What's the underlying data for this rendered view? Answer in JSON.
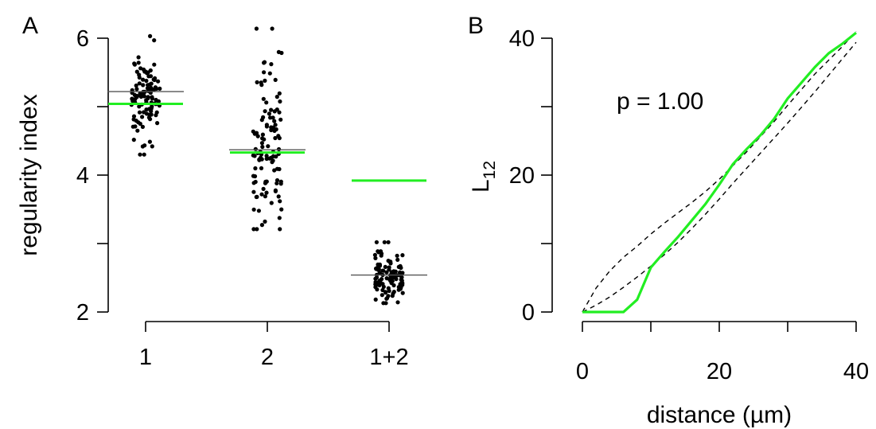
{
  "chart_data": [
    {
      "panel": "A",
      "type": "scatter",
      "ylabel": "regularity index",
      "ylim": [
        2,
        6
      ],
      "yticks_major": [
        2,
        4,
        6
      ],
      "yticks_minor": [
        3,
        5
      ],
      "categories": [
        "1",
        "2",
        "1+2"
      ],
      "groups": [
        {
          "category": "1",
          "mean_line": 5.22,
          "reference_line": 5.04,
          "distribution": {
            "n": 110,
            "center": 5.12,
            "spread": 0.34,
            "min": 4.3,
            "max": 6.03
          }
        },
        {
          "category": "2",
          "mean_line": 4.37,
          "reference_line": 4.33,
          "distribution": {
            "n": 110,
            "center": 4.45,
            "spread": 0.62,
            "min": 3.21,
            "max": 6.14
          }
        },
        {
          "category": "1+2",
          "mean_line": 2.54,
          "reference_line": 3.92,
          "distribution": {
            "n": 110,
            "center": 2.54,
            "spread": 0.17,
            "min": 2.13,
            "max": 3.02
          }
        }
      ],
      "colors": {
        "points": "#000000",
        "mean_line": "#555555",
        "reference_line": "#22ee22"
      }
    },
    {
      "panel": "B",
      "type": "line",
      "xlabel": "distance (µm)",
      "ylabel_main": "L",
      "ylabel_sub": "12",
      "xlim": [
        0,
        40
      ],
      "ylim": [
        0,
        40
      ],
      "xticks_major": [
        0,
        20,
        40
      ],
      "xticks_minor": [
        10,
        30
      ],
      "yticks_major": [
        0,
        20,
        40
      ],
      "yticks_minor": [
        10,
        30
      ],
      "annotation": "p = 1.00",
      "series": [
        {
          "role": "observed",
          "color": "#22ee22",
          "x": [
            0,
            2,
            4,
            6,
            8,
            10,
            12,
            14,
            16,
            18,
            20,
            22,
            24,
            26,
            28,
            30,
            32,
            34,
            36,
            38,
            40
          ],
          "y": [
            0,
            0,
            0,
            0,
            1.8,
            6.5,
            8.8,
            11.0,
            13.4,
            15.8,
            18.6,
            21.6,
            23.8,
            25.8,
            28.2,
            31.2,
            33.5,
            35.8,
            37.8,
            39.2,
            40.8
          ]
        },
        {
          "role": "envelope-upper",
          "color": "#000000",
          "x": [
            0,
            2,
            4,
            6,
            8,
            10,
            12,
            14,
            16,
            18,
            20,
            22,
            24,
            26,
            28,
            30,
            32,
            34,
            36,
            38,
            40
          ],
          "y": [
            0,
            3.5,
            6.0,
            8.0,
            9.6,
            11.4,
            13.0,
            14.5,
            16.0,
            17.6,
            19.4,
            21.4,
            23.4,
            25.6,
            27.8,
            30.2,
            32.5,
            34.8,
            36.8,
            38.8,
            41.0
          ]
        },
        {
          "role": "envelope-lower",
          "color": "#000000",
          "x": [
            0,
            2,
            4,
            6,
            8,
            10,
            12,
            14,
            16,
            18,
            20,
            22,
            24,
            26,
            28,
            30,
            32,
            34,
            36,
            38,
            40
          ],
          "y": [
            0,
            1.0,
            2.2,
            3.6,
            5.1,
            6.7,
            8.4,
            10.2,
            12.2,
            14.3,
            16.5,
            18.8,
            21.0,
            23.2,
            25.4,
            27.6,
            29.9,
            32.2,
            34.6,
            37.0,
            39.4
          ]
        }
      ]
    }
  ],
  "labels": {
    "panel_a": "A",
    "panel_b": "B"
  }
}
